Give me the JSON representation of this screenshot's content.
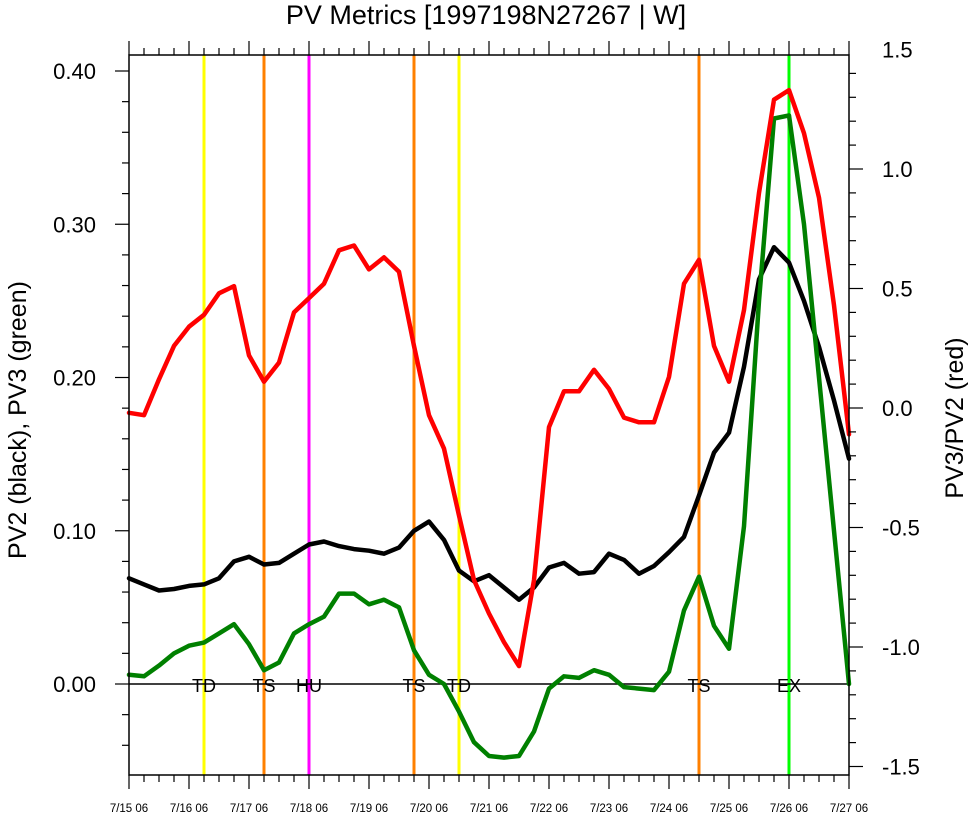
{
  "chart_data": {
    "type": "line",
    "title": "PV Metrics [1997198N27267 | W]",
    "ylabel_left": "PV2 (black), PV3 (green)",
    "ylabel_right": "PV3/PV2 (red)",
    "xlabel": "",
    "xlim": [
      0,
      12
    ],
    "ylim_left": [
      -0.06,
      0.41
    ],
    "ylim_right": [
      -1.5,
      1.5
    ],
    "grid": false,
    "x_tick_labels": [
      {
        "x": 0,
        "label": "7/15 06"
      },
      {
        "x": 1,
        "label": "7/16 06"
      },
      {
        "x": 2,
        "label": "7/17 06"
      },
      {
        "x": 3,
        "label": "7/18 06"
      },
      {
        "x": 4,
        "label": "7/19 06"
      },
      {
        "x": 5,
        "label": "7/20 06"
      },
      {
        "x": 6,
        "label": "7/21 06"
      },
      {
        "x": 7,
        "label": "7/22 06"
      },
      {
        "x": 8,
        "label": "7/23 06"
      },
      {
        "x": 9,
        "label": "7/24 06"
      },
      {
        "x": 10,
        "label": "7/25 06"
      },
      {
        "x": 11,
        "label": "7/26 06"
      },
      {
        "x": 12,
        "label": "7/27 06"
      }
    ],
    "y_left_ticks": [
      {
        "v": 0.0,
        "label": "0.00"
      },
      {
        "v": 0.1,
        "label": "0.10"
      },
      {
        "v": 0.2,
        "label": "0.20"
      },
      {
        "v": 0.3,
        "label": "0.30"
      },
      {
        "v": 0.4,
        "label": "0.40"
      }
    ],
    "y_right_ticks": [
      {
        "v": -1.5,
        "label": "-1.5"
      },
      {
        "v": -1.0,
        "label": "-1.0"
      },
      {
        "v": -0.5,
        "label": "-0.5"
      },
      {
        "v": 0.0,
        "label": "0.0"
      },
      {
        "v": 0.5,
        "label": "0.5"
      },
      {
        "v": 1.0,
        "label": "1.0"
      },
      {
        "v": 1.5,
        "label": "1.5"
      }
    ],
    "series": [
      {
        "color": "#000000",
        "axis": "left",
        "x": [
          0,
          0.25,
          0.5,
          0.75,
          1.0,
          1.25,
          1.5,
          1.75,
          2.0,
          2.25,
          2.5,
          2.75,
          3.0,
          3.25,
          3.5,
          3.75,
          4.0,
          4.25,
          4.5,
          4.75,
          5.0,
          5.25,
          5.5,
          5.75,
          6.0,
          6.25,
          6.5,
          6.75,
          7.0,
          7.25,
          7.5,
          7.75,
          8.0,
          8.25,
          8.5,
          8.75,
          9.0,
          9.25,
          9.5,
          9.75,
          10.0,
          10.25,
          10.5,
          10.75,
          11.0,
          11.25,
          11.5,
          11.75,
          12.0
        ],
        "values": [
          0.069,
          0.065,
          0.061,
          0.062,
          0.064,
          0.065,
          0.069,
          0.08,
          0.083,
          0.078,
          0.079,
          0.085,
          0.091,
          0.093,
          0.09,
          0.088,
          0.087,
          0.085,
          0.089,
          0.1,
          0.106,
          0.094,
          0.074,
          0.067,
          0.071,
          0.063,
          0.055,
          0.063,
          0.076,
          0.079,
          0.072,
          0.073,
          0.085,
          0.081,
          0.072,
          0.077,
          0.086,
          0.096,
          0.123,
          0.151,
          0.164,
          0.207,
          0.264,
          0.285,
          0.275,
          0.25,
          0.22,
          0.185,
          0.147
        ]
      },
      {
        "color": "#008000",
        "axis": "left",
        "x": [
          0,
          0.25,
          0.5,
          0.75,
          1.0,
          1.25,
          1.5,
          1.75,
          2.0,
          2.25,
          2.5,
          2.75,
          3.0,
          3.25,
          3.5,
          3.75,
          4.0,
          4.25,
          4.5,
          4.75,
          5.0,
          5.25,
          5.5,
          5.75,
          6.0,
          6.25,
          6.5,
          6.75,
          7.0,
          7.25,
          7.5,
          7.75,
          8.0,
          8.25,
          8.5,
          8.75,
          9.0,
          9.25,
          9.5,
          9.75,
          10.0,
          10.25,
          10.5,
          10.75,
          11.0,
          11.25,
          11.5,
          11.75,
          12.0
        ],
        "values": [
          0.006,
          0.005,
          0.012,
          0.02,
          0.025,
          0.027,
          0.033,
          0.039,
          0.026,
          0.009,
          0.014,
          0.033,
          0.039,
          0.044,
          0.059,
          0.059,
          0.052,
          0.055,
          0.05,
          0.022,
          0.006,
          0.0,
          -0.018,
          -0.038,
          -0.047,
          -0.048,
          -0.047,
          -0.031,
          -0.003,
          0.005,
          0.004,
          0.009,
          0.006,
          -0.002,
          -0.003,
          -0.004,
          0.008,
          0.048,
          0.07,
          0.038,
          0.023,
          0.103,
          0.25,
          0.369,
          0.371,
          0.3,
          0.2,
          0.1,
          0.0
        ]
      },
      {
        "color": "#ff0000",
        "axis": "right",
        "x": [
          0,
          0.25,
          0.5,
          0.75,
          1.0,
          1.25,
          1.5,
          1.75,
          2.0,
          2.25,
          2.5,
          2.75,
          3.0,
          3.25,
          3.5,
          3.75,
          4.0,
          4.25,
          4.5,
          4.75,
          5.0,
          5.25,
          5.5,
          5.75,
          6.0,
          6.25,
          6.5,
          6.75,
          7.0,
          7.25,
          7.5,
          7.75,
          8.0,
          8.25,
          8.5,
          8.75,
          9.0,
          9.25,
          9.5,
          9.75,
          10.0,
          10.25,
          10.5,
          10.75,
          11.0,
          11.25,
          11.5,
          11.75,
          12.0
        ],
        "values": [
          -0.02,
          -0.03,
          0.12,
          0.26,
          0.34,
          0.39,
          0.48,
          0.51,
          0.22,
          0.11,
          0.19,
          0.4,
          0.46,
          0.52,
          0.66,
          0.68,
          0.58,
          0.63,
          0.57,
          0.26,
          -0.03,
          -0.17,
          -0.45,
          -0.72,
          -0.86,
          -0.98,
          -1.08,
          -0.72,
          -0.08,
          0.07,
          0.07,
          0.16,
          0.08,
          -0.04,
          -0.06,
          -0.06,
          0.13,
          0.52,
          0.62,
          0.26,
          0.11,
          0.41,
          0.9,
          1.29,
          1.33,
          1.15,
          0.88,
          0.43,
          -0.11
        ]
      }
    ],
    "vertical_markers": [
      {
        "x": 1.25,
        "color": "#ffff00",
        "label": "TD"
      },
      {
        "x": 2.25,
        "color": "#ff8000",
        "label": "TS"
      },
      {
        "x": 3.0,
        "color": "#ff00ff",
        "label": "HU"
      },
      {
        "x": 4.75,
        "color": "#ff8000",
        "label": "TS"
      },
      {
        "x": 5.5,
        "color": "#ffff00",
        "label": "TD"
      },
      {
        "x": 9.5,
        "color": "#ff8000",
        "label": "TS"
      },
      {
        "x": 11.0,
        "color": "#00ff00",
        "label": "EX"
      }
    ]
  }
}
